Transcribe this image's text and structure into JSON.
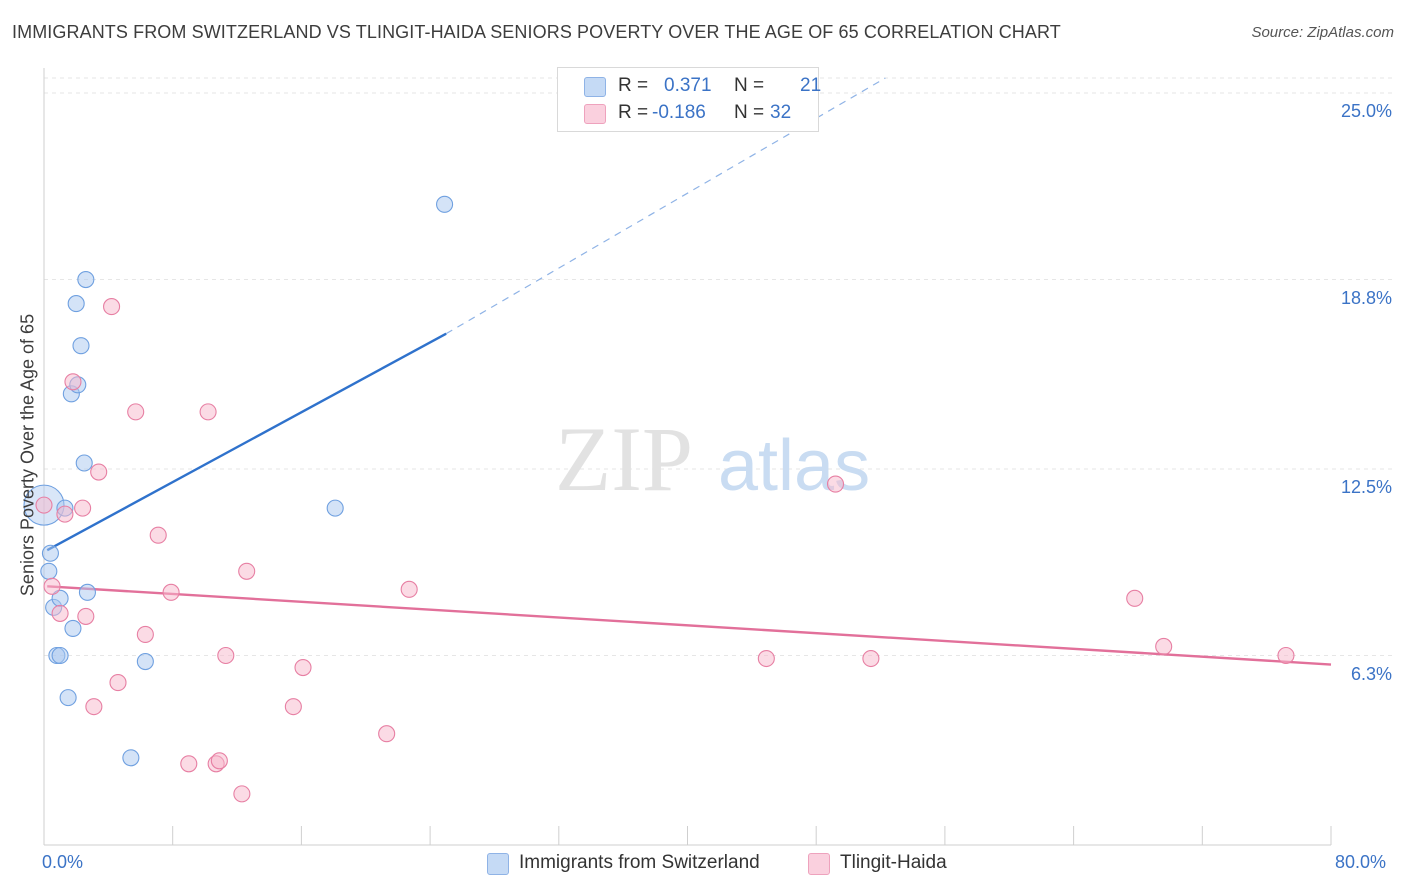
{
  "header": {
    "title": "IMMIGRANTS FROM SWITZERLAND VS TLINGIT-HAIDA SENIORS POVERTY OVER THE AGE OF 65 CORRELATION CHART",
    "source": "Source: ZipAtlas.com"
  },
  "watermark": {
    "zip": "ZIP",
    "atlas": "atlas"
  },
  "legend": {
    "rows": [
      {
        "r_label": "R =",
        "r_value": "0.371",
        "n_label": "N =",
        "n_value": "21",
        "color": "#aac8f0"
      },
      {
        "r_label": "R =",
        "r_value": "-0.186",
        "n_label": "N =",
        "n_value": "32",
        "color": "#f7b8cc"
      }
    ]
  },
  "chart_data": {
    "type": "scatter",
    "title": "IMMIGRANTS FROM SWITZERLAND VS TLINGIT-HAIDA SENIORS POVERTY OVER THE AGE OF 65 CORRELATION CHART",
    "xlabel": "",
    "ylabel": "Seniors Poverty Over the Age of 65",
    "xlim": [
      0,
      80
    ],
    "ylim": [
      0,
      25.5
    ],
    "x_tick_labels": [
      "0.0%",
      "80.0%"
    ],
    "y_ticks": [
      6.3,
      12.5,
      18.8,
      25.0
    ],
    "y_tick_labels": [
      "6.3%",
      "12.5%",
      "18.8%",
      "25.0%"
    ],
    "grid": true,
    "legend_position": "bottom-center",
    "series": [
      {
        "name": "Immigrants from Switzerland",
        "color": "#6fa0e0",
        "fill": "#aac8f0",
        "points": [
          [
            0.0,
            11.3
          ],
          [
            0.4,
            9.7
          ],
          [
            0.3,
            9.1
          ],
          [
            0.6,
            7.9
          ],
          [
            1.0,
            8.2
          ],
          [
            1.8,
            7.2
          ],
          [
            0.8,
            6.3
          ],
          [
            1.0,
            6.3
          ],
          [
            1.5,
            4.9
          ],
          [
            2.0,
            18.0
          ],
          [
            2.3,
            16.6
          ],
          [
            2.6,
            18.8
          ],
          [
            1.7,
            15.0
          ],
          [
            2.1,
            15.3
          ],
          [
            2.5,
            12.7
          ],
          [
            1.3,
            11.2
          ],
          [
            2.7,
            8.4
          ],
          [
            6.3,
            6.1
          ],
          [
            5.4,
            2.9
          ],
          [
            18.1,
            11.2
          ],
          [
            24.9,
            21.3
          ]
        ],
        "trend": {
          "x0": 0.2,
          "y0": 9.8,
          "x1": 25.0,
          "y1": 17.0,
          "dash_x1": 52.3,
          "dash_y1": 25.5
        }
      },
      {
        "name": "Tlingit-Haida",
        "color": "#e77fa3",
        "fill": "#f7b8cc",
        "points": [
          [
            0.5,
            8.6
          ],
          [
            1.0,
            7.7
          ],
          [
            1.3,
            11.0
          ],
          [
            1.8,
            15.4
          ],
          [
            2.4,
            11.2
          ],
          [
            2.6,
            7.6
          ],
          [
            3.4,
            12.4
          ],
          [
            4.6,
            5.4
          ],
          [
            3.1,
            4.6
          ],
          [
            6.3,
            7.0
          ],
          [
            5.7,
            14.4
          ],
          [
            7.1,
            10.3
          ],
          [
            7.9,
            8.4
          ],
          [
            10.2,
            14.4
          ],
          [
            9.0,
            2.7
          ],
          [
            10.7,
            2.7
          ],
          [
            10.9,
            2.8
          ],
          [
            11.3,
            6.3
          ],
          [
            12.3,
            1.7
          ],
          [
            12.6,
            9.1
          ],
          [
            15.5,
            4.6
          ],
          [
            16.1,
            5.9
          ],
          [
            21.3,
            3.7
          ],
          [
            22.7,
            8.5
          ],
          [
            49.2,
            12.0
          ],
          [
            44.9,
            6.2
          ],
          [
            51.4,
            6.2
          ],
          [
            67.8,
            8.2
          ],
          [
            69.6,
            6.6
          ],
          [
            77.2,
            6.3
          ],
          [
            4.2,
            17.9
          ],
          [
            0.0,
            11.3
          ]
        ],
        "trend": {
          "x0": 0.2,
          "y0": 8.6,
          "x1": 80.0,
          "y1": 6.0
        }
      }
    ]
  },
  "bottom_legend": {
    "items": [
      {
        "label": "Immigrants from Switzerland",
        "color": "#aac8f0"
      },
      {
        "label": "Tlingit-Haida",
        "color": "#f7b8cc"
      }
    ]
  }
}
